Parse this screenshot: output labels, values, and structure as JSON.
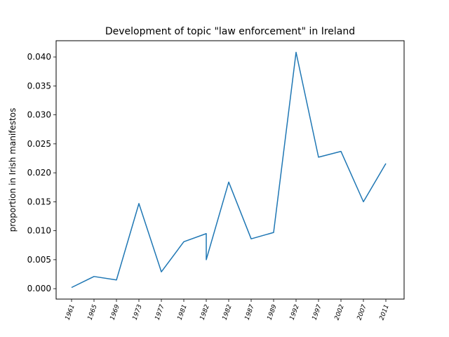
{
  "chart_data": {
    "type": "line",
    "title": "Development of topic \"law enforcement\" in Ireland",
    "xlabel": "",
    "ylabel": "proportion in Irish manifestos",
    "categories": [
      "1961",
      "1965",
      "1969",
      "1973",
      "1977",
      "1981",
      "1982",
      "1982",
      "1987",
      "1989",
      "1992",
      "1997",
      "2002",
      "2007",
      "2011"
    ],
    "series": [
      {
        "color": "#1f77b4",
        "points": [
          {
            "x": "1961",
            "y": 0.0002
          },
          {
            "x": "1965",
            "y": 0.0021
          },
          {
            "x": "1969",
            "y": 0.0015
          },
          {
            "x": "1973",
            "y": 0.0147
          },
          {
            "x": "1977",
            "y": 0.0029
          },
          {
            "x": "1981",
            "y": 0.0081
          },
          {
            "x": "1982",
            "y": 0.0095
          },
          {
            "x": "1982",
            "y": 0.005
          },
          {
            "x": "1982",
            "y": 0.0184
          },
          {
            "x": "1987",
            "y": 0.0086
          },
          {
            "x": "1989",
            "y": 0.0097
          },
          {
            "x": "1992",
            "y": 0.0408
          },
          {
            "x": "1997",
            "y": 0.0227
          },
          {
            "x": "2002",
            "y": 0.0237
          },
          {
            "x": "2007",
            "y": 0.015
          },
          {
            "x": "2011",
            "y": 0.0216
          }
        ]
      }
    ],
    "xtick_indices": [
      0,
      1,
      2,
      3,
      4,
      5,
      6,
      7,
      8,
      9,
      10,
      11,
      12,
      13,
      14
    ],
    "point_tick_index": [
      0,
      1,
      2,
      3,
      4,
      5,
      6,
      6,
      7,
      8,
      9,
      10,
      11,
      12,
      13,
      14
    ],
    "yticks": [
      0.0,
      0.005,
      0.01,
      0.015,
      0.02,
      0.025,
      0.03,
      0.035,
      0.04
    ],
    "ytick_labels": [
      "0.000",
      "0.005",
      "0.010",
      "0.015",
      "0.020",
      "0.025",
      "0.030",
      "0.035",
      "0.040"
    ],
    "ylim": [
      -0.0018,
      0.0428
    ],
    "grid": false,
    "legend": "none"
  }
}
